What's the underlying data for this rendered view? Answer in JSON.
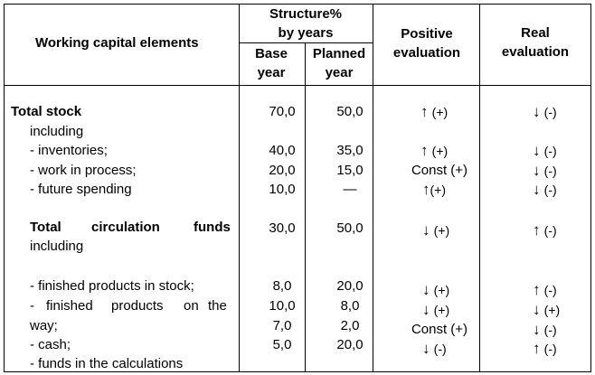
{
  "header": {
    "elements": "Working capital elements",
    "structure_line1": "Structure%",
    "structure_line2": "by years",
    "base_line1": "Base",
    "base_line2": "year",
    "planned_line1": "Planned",
    "planned_line2": "year",
    "positive_line1": "Positive",
    "positive_line2": "evaluation",
    "real_line1": "Real",
    "real_line2": "evaluation"
  },
  "section1": {
    "title": "Total stock",
    "sub": "including",
    "total": {
      "base": "70,0",
      "planned": "50,0",
      "pos_arrow": "↑",
      "pos_sign": "(+)",
      "real_arrow": "↓",
      "real_sign": "(-)"
    },
    "rows": [
      {
        "label": "- inventories;",
        "base": "40,0",
        "planned": "35,0",
        "pos_arrow": "↑",
        "pos_sign": "(+)",
        "real_arrow": "↓",
        "real_sign": "(-)"
      },
      {
        "label": "- work in process;",
        "base": "20,0",
        "planned": "15,0",
        "pos_text": "Const (+)",
        "real_arrow": "↓",
        "real_sign": "(-)"
      },
      {
        "label": "- future spending",
        "base": "10,0",
        "planned": "—",
        "pos_arrow": "↑",
        "pos_sign": "(+)",
        "real_arrow": "↓",
        "real_sign": "(-)"
      }
    ]
  },
  "section2": {
    "title_w1": "Total",
    "title_w2": "circulation",
    "title_w3": "funds",
    "sub": "including",
    "total": {
      "base": "30,0",
      "planned": "50,0",
      "pos_arrow": "↓",
      "pos_sign": "(+)",
      "real_arrow": "↑",
      "real_sign": "(-)"
    },
    "labels": {
      "l1": "- finished products in stock;",
      "l2_w1": "-",
      "l2_w2": "finished",
      "l2_w3": "products",
      "l2_w4": "on",
      "l2_w5": "the",
      "l3": "way;",
      "l4": "- cash;",
      "l5": "- funds in the calculations"
    },
    "base": [
      "8,0",
      "10,0",
      "7,0",
      "5,0"
    ],
    "planned": [
      "20,0",
      "8,0",
      "2,0",
      "20,0"
    ],
    "positive": [
      {
        "arrow": "↓",
        "sign": "(+)"
      },
      {
        "arrow": "↓",
        "sign": "(+)"
      },
      {
        "text": "Const (+)"
      },
      {
        "arrow": "↓",
        "sign": "(-)"
      }
    ],
    "real": [
      {
        "arrow": "↑",
        "sign": "(-)"
      },
      {
        "arrow": "↓",
        "sign": "(+)"
      },
      {
        "arrow": "↓",
        "sign": "(-)"
      },
      {
        "arrow": "↑",
        "sign": "(-)"
      }
    ]
  }
}
